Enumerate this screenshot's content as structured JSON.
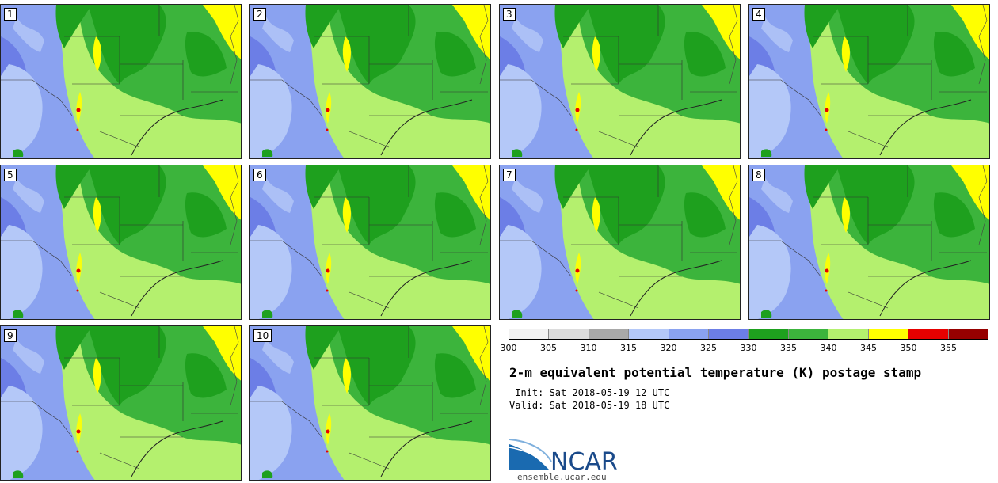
{
  "members": [
    "1",
    "2",
    "3",
    "4",
    "5",
    "6",
    "7",
    "8",
    "9",
    "10"
  ],
  "colorbar": {
    "ticks": [
      "300",
      "305",
      "310",
      "315",
      "320",
      "325",
      "330",
      "335",
      "340",
      "345",
      "350",
      "355"
    ],
    "colors": [
      "#f2f2f2",
      "#dcdcdc",
      "#a8a8a8",
      "#b4c8f8",
      "#8aa2f0",
      "#6c7ee6",
      "#1ea01e",
      "#3cb43c",
      "#b4f06e",
      "#ffff00",
      "#e60000",
      "#960000"
    ]
  },
  "title": "2-m equivalent potential temperature (K) postage stamp",
  "init": " Init: Sat 2018-05-19 12 UTC",
  "valid": "Valid: Sat 2018-05-19 18 UTC",
  "logo": {
    "text": "NCAR",
    "url": "ensemble.ucar.edu"
  }
}
